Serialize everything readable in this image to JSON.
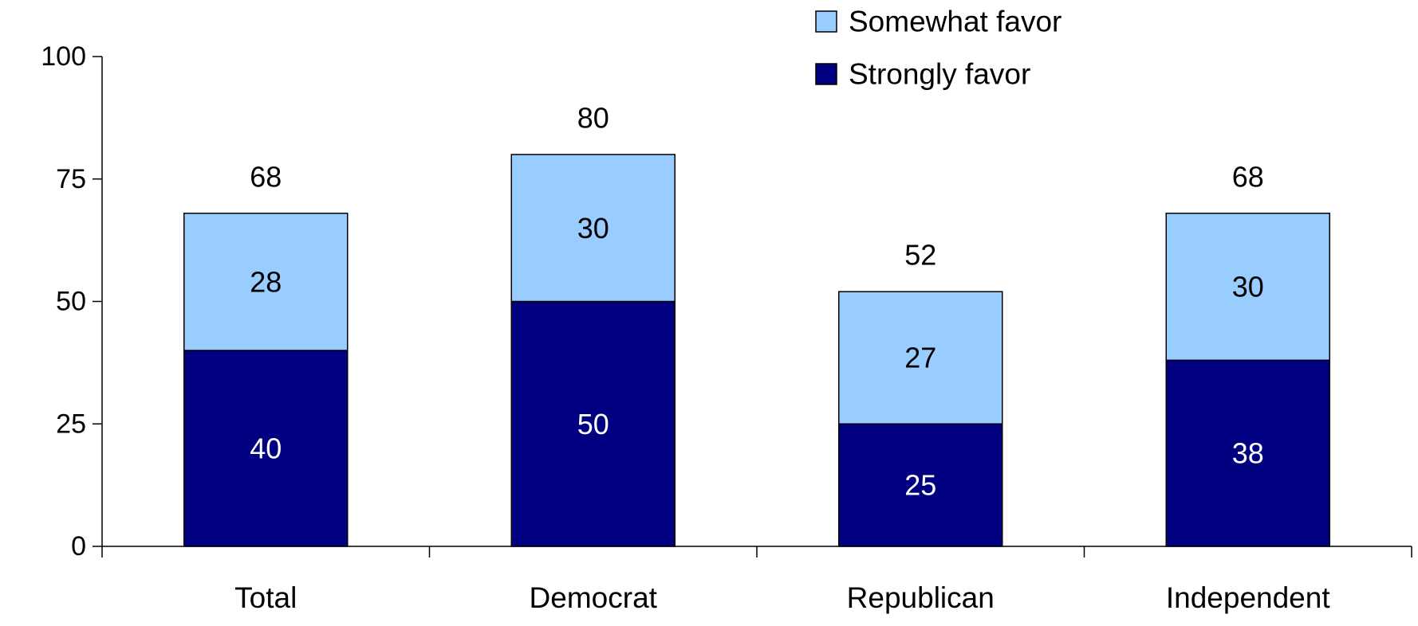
{
  "chart_data": {
    "type": "bar",
    "stacked": true,
    "categories": [
      "Total",
      "Democrat",
      "Republican",
      "Independent"
    ],
    "series": [
      {
        "name": "Strongly favor",
        "values": [
          40,
          50,
          25,
          38
        ],
        "color": "#000080",
        "label_color": "#ffffff"
      },
      {
        "name": "Somewhat favor",
        "values": [
          28,
          30,
          27,
          30
        ],
        "color": "#99ccff",
        "label_color": "#000000"
      }
    ],
    "totals": [
      68,
      80,
      52,
      68
    ],
    "ylim": [
      0,
      100
    ],
    "yticks": [
      0,
      25,
      50,
      75,
      100
    ],
    "legend_position": "top",
    "grid": false
  }
}
